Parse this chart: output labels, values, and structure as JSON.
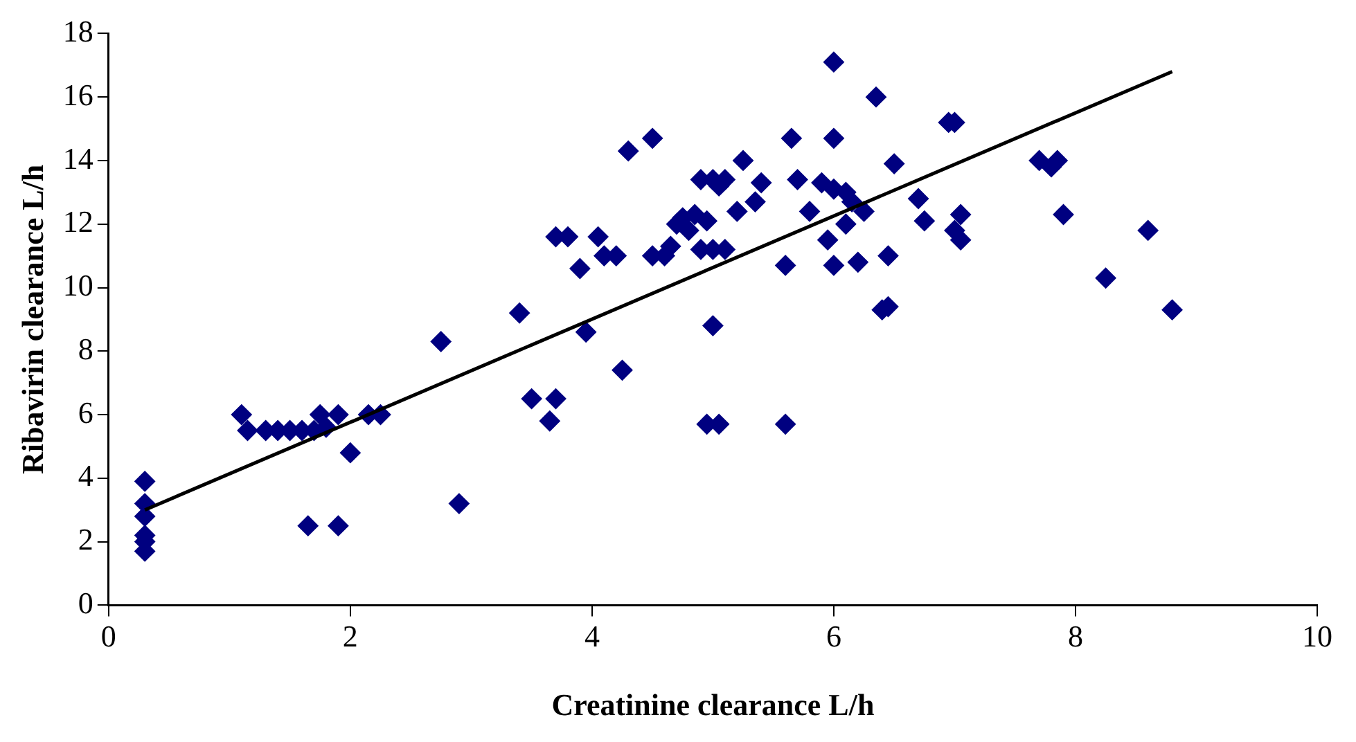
{
  "chart_data": {
    "type": "scatter",
    "xlabel": "Creatinine clearance L/h",
    "ylabel": "Ribavirin clearance L/h",
    "xlim": [
      0,
      10
    ],
    "xticks": [
      0,
      2,
      4,
      6,
      8,
      10
    ],
    "ylim": [
      0,
      18
    ],
    "yticks": [
      0,
      2,
      4,
      6,
      8,
      10,
      12,
      14,
      16,
      18
    ],
    "grid": false,
    "legend": false,
    "series": [
      {
        "color": "#000080",
        "marker": "diamond",
        "x": [
          0.3,
          0.3,
          0.3,
          0.3,
          0.3,
          0.3,
          1.1,
          1.15,
          1.3,
          1.4,
          1.5,
          1.6,
          1.7,
          1.75,
          1.8,
          1.9,
          2.15,
          2.25,
          2.0,
          1.65,
          1.9,
          2.75,
          2.9,
          3.4,
          3.5,
          3.65,
          3.7,
          3.7,
          3.8,
          3.9,
          3.95,
          4.05,
          4.1,
          4.2,
          4.25,
          4.3,
          4.5,
          4.5,
          4.6,
          4.65,
          4.7,
          4.75,
          4.8,
          4.85,
          4.9,
          4.9,
          4.95,
          5.0,
          5.05,
          5.1,
          5.0,
          5.1,
          5.0,
          4.95,
          5.05,
          5.2,
          5.25,
          5.35,
          5.4,
          5.6,
          5.6,
          5.65,
          5.7,
          5.8,
          5.9,
          5.95,
          6.0,
          6.0,
          6.0,
          6.0,
          6.1,
          6.1,
          6.15,
          6.2,
          6.25,
          6.35,
          6.4,
          6.45,
          6.45,
          6.5,
          6.7,
          6.75,
          6.95,
          7.0,
          7.0,
          7.05,
          7.05,
          7.7,
          7.8,
          7.85,
          7.9,
          8.25,
          8.6,
          8.8
        ],
        "values": [
          3.9,
          3.2,
          2.8,
          2.2,
          2.0,
          1.7,
          6.0,
          5.5,
          5.5,
          5.5,
          5.5,
          5.5,
          5.5,
          6.0,
          5.6,
          6.0,
          6.0,
          6.0,
          4.8,
          2.5,
          2.5,
          8.3,
          3.2,
          9.2,
          6.5,
          5.8,
          6.5,
          11.6,
          11.6,
          10.6,
          8.6,
          11.6,
          11.0,
          11.0,
          7.4,
          14.3,
          14.7,
          11.0,
          11.0,
          11.3,
          12.0,
          12.2,
          11.8,
          12.3,
          11.2,
          13.4,
          12.1,
          13.4,
          13.2,
          13.4,
          11.2,
          11.2,
          8.8,
          5.7,
          5.7,
          12.4,
          14.0,
          12.7,
          13.3,
          5.7,
          10.7,
          14.7,
          13.4,
          12.4,
          13.3,
          11.5,
          14.7,
          13.1,
          10.7,
          17.1,
          12.0,
          13.0,
          12.7,
          10.8,
          12.4,
          16.0,
          9.3,
          9.4,
          11.0,
          13.9,
          12.8,
          12.1,
          15.2,
          15.2,
          11.8,
          12.3,
          11.5,
          14.0,
          13.8,
          14.0,
          12.3,
          10.3,
          11.8,
          9.3
        ]
      },
      {
        "type": "line",
        "color": "#000000",
        "marker": "none",
        "line_style": "solid",
        "x": [
          0.3,
          8.8
        ],
        "values": [
          3.0,
          16.8
        ]
      }
    ]
  }
}
